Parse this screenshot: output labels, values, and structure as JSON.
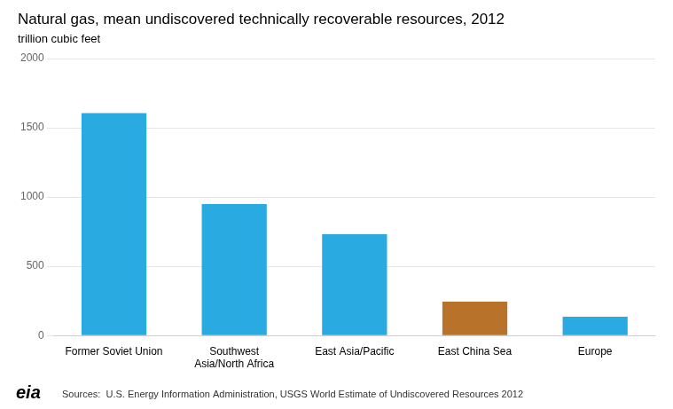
{
  "chart_data": {
    "type": "bar",
    "title": "Natural gas, mean undiscovered technically recoverable resources, 2012",
    "subtitle": "trillion cubic feet",
    "categories": [
      "Former Soviet Union",
      "Southwest\nAsia/North Africa",
      "East Asia/Pacific",
      "East China Sea",
      "Europe"
    ],
    "values": [
      1606,
      950,
      731,
      245,
      136
    ],
    "colors": [
      "#29ABE2",
      "#29ABE2",
      "#29ABE2",
      "#B8722A",
      "#29ABE2"
    ],
    "ylim": [
      0,
      2000
    ],
    "yticks": [
      0,
      500,
      1000,
      1500,
      2000
    ],
    "grid": true,
    "annotations": [
      "Sources:  U.S. Energy Information Administration, USGS World Estimate of Undiscovered Resources 2012",
      "eia"
    ]
  }
}
